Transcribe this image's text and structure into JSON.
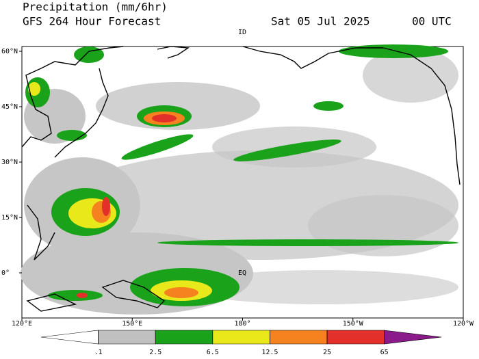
{
  "header": {
    "title": "Precipitation (mm/6hr)",
    "model": "GFS 264 Hour Forecast",
    "date": "Sat 05 Jul 2025",
    "time": "00 UTC"
  },
  "map": {
    "lat_labels": [
      {
        "value": 60,
        "label": "60°N"
      },
      {
        "value": 45,
        "label": "45°N"
      },
      {
        "value": 30,
        "label": "30°N"
      },
      {
        "value": 15,
        "label": "15°N"
      },
      {
        "value": 0,
        "label": "0°"
      }
    ],
    "lon_labels": [
      {
        "value": 120,
        "label": "120°E"
      },
      {
        "value": 150,
        "label": "150°E"
      },
      {
        "value": 180,
        "label": "180°"
      },
      {
        "value": 210,
        "label": "150°W"
      },
      {
        "value": 240,
        "label": "120°W"
      }
    ],
    "equator_label": "EQ",
    "dateline_label": "ID"
  },
  "colorbar": {
    "levels": [
      {
        "value": 0.1,
        "label": ".1"
      },
      2.5,
      6.5,
      12.5,
      25,
      65
    ],
    "colors": [
      "#ffffff",
      "#c0c0c0",
      "#1aa31a",
      "#e8e81a",
      "#f5821f",
      "#e3302a",
      "#8b1a8b"
    ]
  }
}
